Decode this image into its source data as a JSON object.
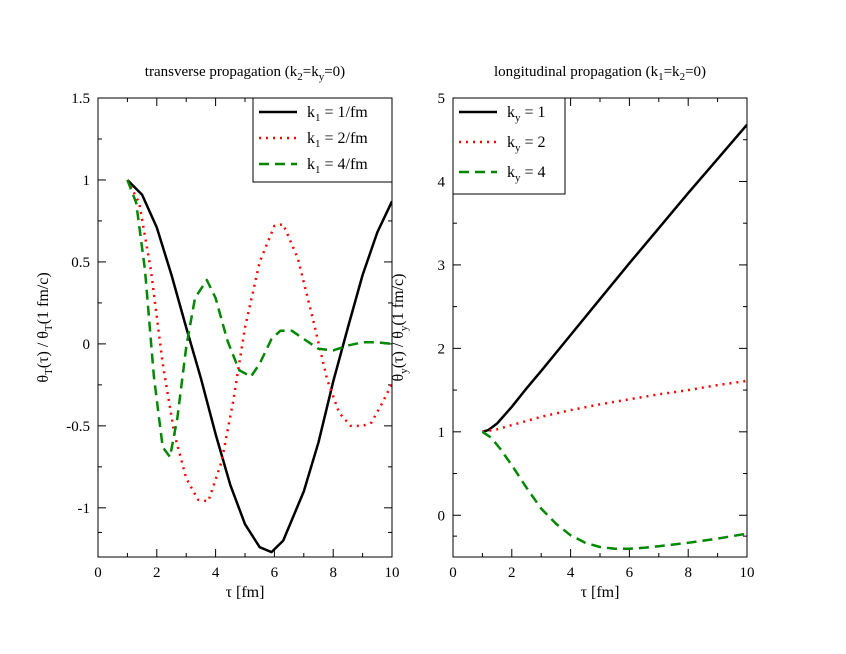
{
  "chart_data": [
    {
      "type": "line",
      "title": {
        "main": "transverse propagation (k",
        "sub1": "2",
        "mid": "=k",
        "sub2": "y",
        "end": "=0)"
      },
      "xlabel": "τ [fm]",
      "ylabel": {
        "a": "θ",
        "a_sub": "T",
        "b": "(τ) / θ",
        "b_sub": "T",
        "c": "(1 fm/c)"
      },
      "xlim": [
        0,
        10
      ],
      "ylim": [
        -1.3,
        1.5
      ],
      "xticks": [
        0,
        2,
        4,
        6,
        8,
        10
      ],
      "xtick_labels": [
        "0",
        "2",
        "4",
        "6",
        "8",
        "10"
      ],
      "yticks": [
        -1,
        -0.5,
        0,
        0.5,
        1,
        1.5
      ],
      "ytick_labels": [
        "-1",
        "-0.5",
        "0",
        "0.5",
        "1",
        "1.5"
      ],
      "legend_position": "top-right",
      "series": [
        {
          "name": "k1 = 1/fm",
          "label_pre": "k",
          "label_sub": "1",
          "label_post": " = 1/fm",
          "color": "#000000",
          "style": "solid",
          "x": [
            1.0,
            1.5,
            2.0,
            2.5,
            3.0,
            3.5,
            4.0,
            4.5,
            5.0,
            5.5,
            5.9,
            6.3,
            7.0,
            7.5,
            8.0,
            8.5,
            9.0,
            9.5,
            10.0
          ],
          "y": [
            1.0,
            0.91,
            0.71,
            0.42,
            0.1,
            -0.21,
            -0.55,
            -0.86,
            -1.1,
            -1.24,
            -1.27,
            -1.2,
            -0.9,
            -0.6,
            -0.23,
            0.1,
            0.42,
            0.68,
            0.87
          ]
        },
        {
          "name": "k1 = 2/fm",
          "label_pre": "k",
          "label_sub": "1",
          "label_post": " = 2/fm",
          "color": "#ff0000",
          "style": "dotted",
          "x": [
            1.0,
            1.4,
            1.8,
            2.2,
            2.6,
            3.0,
            3.4,
            3.75,
            4.2,
            4.6,
            5.0,
            5.5,
            6.0,
            6.3,
            6.8,
            7.3,
            7.8,
            8.2,
            8.6,
            9.0,
            9.3,
            9.7,
            10.0
          ],
          "y": [
            1.0,
            0.86,
            0.45,
            -0.12,
            -0.55,
            -0.82,
            -0.95,
            -0.96,
            -0.72,
            -0.35,
            0.1,
            0.5,
            0.72,
            0.73,
            0.52,
            0.16,
            -0.22,
            -0.42,
            -0.5,
            -0.5,
            -0.48,
            -0.35,
            -0.24
          ]
        },
        {
          "name": "k1 = 4/fm",
          "label_pre": "k",
          "label_sub": "1",
          "label_post": " = 4/fm",
          "color": "#008800",
          "style": "dashed",
          "x": [
            1.0,
            1.3,
            1.6,
            1.9,
            2.2,
            2.45,
            2.7,
            3.0,
            3.3,
            3.7,
            4.0,
            4.4,
            4.8,
            5.2,
            5.5,
            5.9,
            6.2,
            6.6,
            7.0,
            7.5,
            8.0,
            8.5,
            9.0,
            9.5,
            10.0
          ],
          "y": [
            1.0,
            0.86,
            0.45,
            -0.2,
            -0.63,
            -0.69,
            -0.45,
            -0.02,
            0.28,
            0.39,
            0.28,
            0.02,
            -0.16,
            -0.2,
            -0.12,
            0.03,
            0.08,
            0.08,
            0.03,
            -0.03,
            -0.04,
            -0.01,
            0.01,
            0.01,
            0.0
          ]
        }
      ]
    },
    {
      "type": "line",
      "title": {
        "main": "longitudinal propagation (k",
        "sub1": "1",
        "mid": "=k",
        "sub2": "2",
        "end": "=0)"
      },
      "xlabel": "τ [fm]",
      "ylabel": {
        "a": "θ",
        "a_sub": "y",
        "b": "(τ) / θ",
        "b_sub": "y",
        "c": "(1 fm/c)"
      },
      "xlim": [
        0,
        10
      ],
      "ylim": [
        -0.5,
        5
      ],
      "xticks": [
        0,
        2,
        4,
        6,
        8,
        10
      ],
      "xtick_labels": [
        "0",
        "2",
        "4",
        "6",
        "8",
        "10"
      ],
      "yticks": [
        0,
        1,
        2,
        3,
        4,
        5
      ],
      "ytick_labels": [
        "0",
        "1",
        "2",
        "3",
        "4",
        "5"
      ],
      "legend_position": "top-left",
      "series": [
        {
          "name": "ky = 1",
          "label_pre": "k",
          "label_sub": "y",
          "label_post": " = 1",
          "color": "#000000",
          "style": "solid",
          "x": [
            1.0,
            1.2,
            1.5,
            2.0,
            2.5,
            3.0,
            4.0,
            5.0,
            6.0,
            7.0,
            8.0,
            9.0,
            10.0
          ],
          "y": [
            1.0,
            1.02,
            1.1,
            1.3,
            1.52,
            1.73,
            2.16,
            2.59,
            3.02,
            3.44,
            3.86,
            4.27,
            4.68
          ]
        },
        {
          "name": "ky = 2",
          "label_pre": "k",
          "label_sub": "y",
          "label_post": " = 2",
          "color": "#ff0000",
          "style": "dotted",
          "x": [
            1.0,
            1.5,
            2.0,
            3.0,
            4.0,
            5.0,
            6.0,
            7.0,
            8.0,
            9.0,
            10.0
          ],
          "y": [
            1.0,
            1.03,
            1.08,
            1.18,
            1.26,
            1.33,
            1.39,
            1.45,
            1.5,
            1.56,
            1.61
          ]
        },
        {
          "name": "ky = 4",
          "label_pre": "k",
          "label_sub": "y",
          "label_post": " = 4",
          "color": "#008800",
          "style": "dashed",
          "x": [
            1.0,
            1.3,
            1.6,
            2.0,
            2.5,
            3.0,
            3.5,
            4.0,
            4.5,
            5.0,
            5.5,
            6.0,
            6.5,
            7.0,
            8.0,
            9.0,
            10.0
          ],
          "y": [
            1.0,
            0.93,
            0.8,
            0.6,
            0.33,
            0.08,
            -0.1,
            -0.24,
            -0.33,
            -0.38,
            -0.4,
            -0.4,
            -0.39,
            -0.37,
            -0.33,
            -0.28,
            -0.22
          ]
        }
      ]
    }
  ]
}
